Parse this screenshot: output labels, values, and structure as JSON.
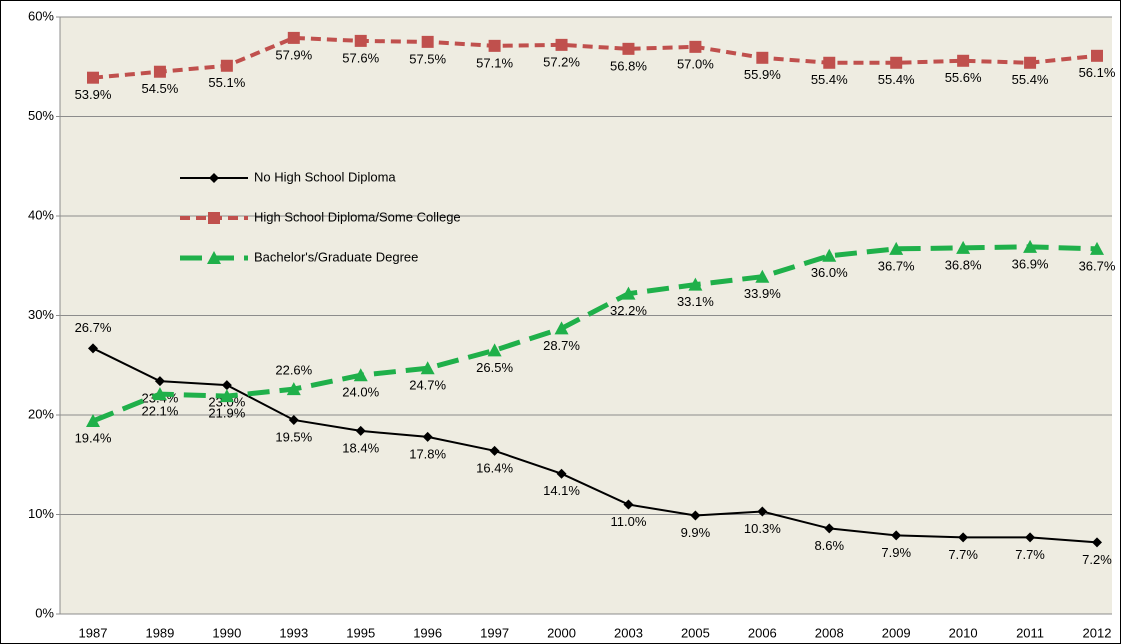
{
  "chart_data": {
    "type": "line",
    "categories": [
      "1987",
      "1989",
      "1990",
      "1993",
      "1995",
      "1996",
      "1997",
      "2000",
      "2003",
      "2005",
      "2006",
      "2008",
      "2009",
      "2010",
      "2011",
      "2012"
    ],
    "series": [
      {
        "name": "No High School Diploma",
        "color": "#000000",
        "marker": "diamond",
        "values": [
          26.7,
          23.4,
          23.0,
          19.5,
          18.4,
          17.8,
          16.4,
          14.1,
          11.0,
          9.9,
          10.3,
          8.6,
          7.9,
          7.7,
          7.7,
          7.2
        ],
        "value_labels": [
          "26.7%",
          "23.4%",
          "23.0%",
          "19.5%",
          "18.4%",
          "17.8%",
          "16.4%",
          "14.1%",
          "11.0%",
          "9.9%",
          "10.3%",
          "8.6%",
          "7.9%",
          "7.7%",
          "7.7%",
          "7.2%"
        ]
      },
      {
        "name": "High School Diploma/Some College",
        "color": "#c0504d",
        "marker": "square",
        "values": [
          53.9,
          54.5,
          55.1,
          57.9,
          57.6,
          57.5,
          57.1,
          57.2,
          56.8,
          57.0,
          55.9,
          55.4,
          55.4,
          55.6,
          55.4,
          56.1
        ],
        "value_labels": [
          "53.9%",
          "54.5%",
          "55.1%",
          "57.9%",
          "57.6%",
          "57.5%",
          "57.1%",
          "57.2%",
          "56.8%",
          "57.0%",
          "55.9%",
          "55.4%",
          "55.4%",
          "55.6%",
          "55.4%",
          "56.1%"
        ]
      },
      {
        "name": "Bachelor's/Graduate Degree",
        "color": "#1fb04a",
        "marker": "triangle",
        "values": [
          19.4,
          22.1,
          21.9,
          22.6,
          24.0,
          24.7,
          26.5,
          28.7,
          32.2,
          33.1,
          33.9,
          36.0,
          36.7,
          36.8,
          36.9,
          36.7
        ],
        "value_labels": [
          "19.4%",
          "22.1%",
          "21.9%",
          "22.6%",
          "24.0%",
          "24.7%",
          "26.5%",
          "28.7%",
          "32.2%",
          "33.1%",
          "33.9%",
          "36.0%",
          "36.7%",
          "36.8%",
          "36.9%",
          "36.7%"
        ]
      }
    ],
    "ylim": [
      0,
      60
    ],
    "yticks": [
      {
        "value": 0,
        "label": "0%"
      },
      {
        "value": 10,
        "label": "10%"
      },
      {
        "value": 20,
        "label": "20%"
      },
      {
        "value": 30,
        "label": "30%"
      },
      {
        "value": 40,
        "label": "40%"
      },
      {
        "value": 50,
        "label": "50%"
      },
      {
        "value": 60,
        "label": "60%"
      }
    ],
    "grid": true,
    "legend": "upper left"
  }
}
